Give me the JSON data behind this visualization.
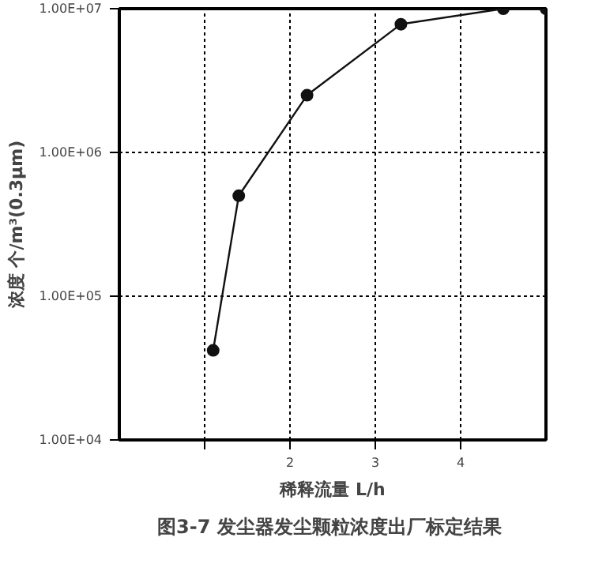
{
  "chart_data": {
    "type": "line",
    "xlabel": "稀释流量 L/h",
    "ylabel": "浓度 个/m³(0.3μm)",
    "annotations": [
      "图3-7  发尘器发尘颗粒浓度出厂标定结果"
    ],
    "x": [
      1.1,
      1.4,
      2.2,
      3.3,
      4.5,
      5.0
    ],
    "series": [
      {
        "color": "#111111",
        "values": [
          42000,
          500000,
          2500000,
          7800000,
          10000000,
          10000000
        ]
      }
    ],
    "xlim": [
      0,
      5
    ],
    "xticks": [
      {
        "value": 1,
        "label": null
      },
      2,
      3,
      4
    ],
    "ylim": [
      10000,
      10000000
    ],
    "yticks": [
      {
        "value": 10000,
        "label": "1.00E+04"
      },
      {
        "value": 100000,
        "label": "1.00E+05"
      },
      {
        "value": 1000000,
        "label": "1.00E+06"
      },
      {
        "value": 10000000,
        "label": "1.00E+07"
      }
    ],
    "log": "y",
    "grid": true,
    "marker": "circle",
    "line_style": "solid"
  }
}
